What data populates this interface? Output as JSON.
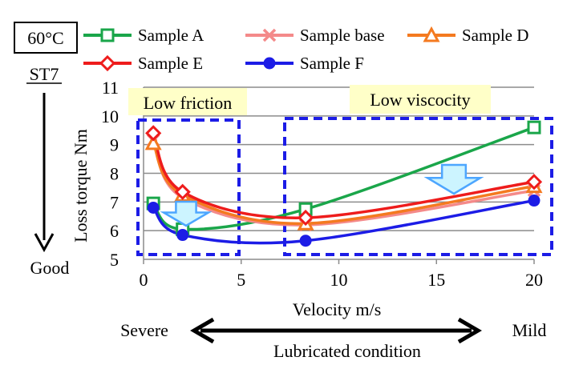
{
  "badges": {
    "temperature": "60°C",
    "steel": "ST7",
    "good_label": "Good"
  },
  "regions": {
    "left_label": "Low friction",
    "right_label": "Low viscocity"
  },
  "condition": {
    "left": "Severe",
    "right": "Mild",
    "label": "Lubricated condition"
  },
  "colors": {
    "sample_a": "#1aa64a",
    "sample_base": "#f48a8a",
    "sample_d": "#f47a20",
    "sample_e": "#ee1c1c",
    "sample_f": "#1c1ce6",
    "region_border": "#1c1ce6",
    "region_label_bg": "#ffffc8",
    "arrow_fill": "#ccf4ff",
    "arrow_stroke": "#4da6ff"
  },
  "chart_data": {
    "type": "line",
    "title": "",
    "xlabel": "Velocity m/s",
    "ylabel": "Loss torque Nm",
    "xlim": [
      0,
      20
    ],
    "ylim": [
      5,
      11
    ],
    "xticks": [
      0,
      5,
      10,
      15,
      20
    ],
    "yticks": [
      5,
      6,
      7,
      8,
      9,
      10,
      11
    ],
    "grid": "horizontal",
    "legend_position": "top",
    "series": [
      {
        "name": "Sample A",
        "marker": "square-open",
        "color_key": "sample_a",
        "x": [
          0.5,
          2,
          8.3,
          20
        ],
        "y": [
          6.95,
          6.05,
          6.75,
          9.6
        ]
      },
      {
        "name": "Sample base",
        "marker": "x",
        "color_key": "sample_base",
        "x": [
          0.5,
          2,
          8.3,
          20
        ],
        "y": [
          9.15,
          7.15,
          6.2,
          7.4
        ]
      },
      {
        "name": "Sample D",
        "marker": "triangle-open",
        "color_key": "sample_d",
        "x": [
          0.5,
          2,
          8.3,
          20
        ],
        "y": [
          9.05,
          7.25,
          6.25,
          7.55
        ]
      },
      {
        "name": "Sample E",
        "marker": "diamond-open",
        "color_key": "sample_e",
        "x": [
          0.5,
          2,
          8.3,
          20
        ],
        "y": [
          9.4,
          7.35,
          6.45,
          7.7
        ]
      },
      {
        "name": "Sample F",
        "marker": "circle",
        "color_key": "sample_f",
        "x": [
          0.5,
          2,
          8.3,
          20
        ],
        "y": [
          6.8,
          5.85,
          5.65,
          7.05
        ]
      }
    ]
  }
}
